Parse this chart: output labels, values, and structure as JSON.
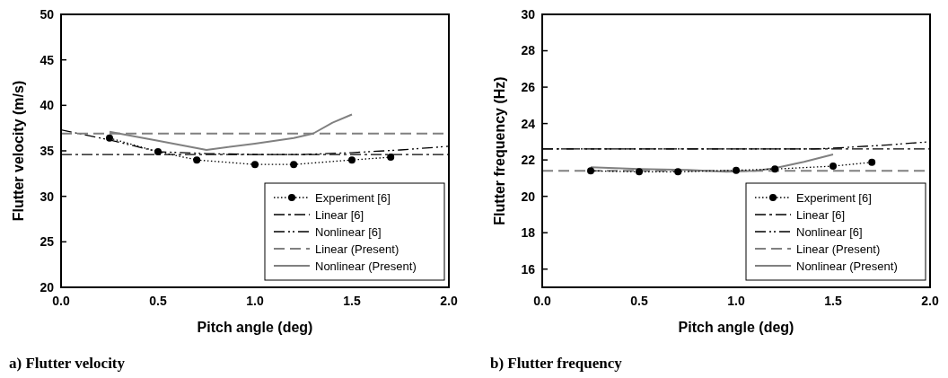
{
  "chart_data": [
    {
      "type": "line",
      "title": "a) Flutter velocity",
      "xlabel": "Pitch angle (deg)",
      "ylabel": "Flutter velocity (m/s)",
      "xlim": [
        0,
        2
      ],
      "xticks": [
        {
          "value": 0,
          "label": "0.0"
        },
        {
          "value": 0.5,
          "label": "0.5"
        },
        {
          "value": 1,
          "label": "1.0"
        },
        {
          "value": 1.5,
          "label": "1.5"
        },
        {
          "value": 2,
          "label": "2.0"
        }
      ],
      "ylim": [
        20,
        50
      ],
      "yticks": [
        20,
        25,
        30,
        35,
        40,
        45,
        50
      ],
      "grid": false,
      "legend": "bottom right",
      "series": [
        {
          "name": "Experiment [6]",
          "color": "#000000",
          "marker": "circle",
          "line_style": "dotted",
          "x": [
            0.25,
            0.5,
            0.7,
            1.0,
            1.2,
            1.5,
            1.7
          ],
          "values": [
            36.4,
            34.9,
            34.0,
            33.5,
            33.5,
            34.0,
            34.3
          ]
        },
        {
          "name": "Linear [6]",
          "color": "#000000",
          "marker": "none",
          "line_style": "dashdot",
          "x": [
            0,
            2
          ],
          "values": [
            34.6,
            34.6
          ]
        },
        {
          "name": "Nonlinear [6]",
          "color": "#000000",
          "marker": "none",
          "line_style": "dashdotdot",
          "x": [
            0,
            0.25,
            0.5,
            0.75,
            1.0,
            1.25,
            1.5,
            1.75,
            2.0
          ],
          "values": [
            37.3,
            36.2,
            34.9,
            34.7,
            34.6,
            34.6,
            34.8,
            35.1,
            35.5
          ]
        },
        {
          "name": "Linear (Present)",
          "color": "#808080",
          "marker": "none",
          "line_style": "dashed",
          "x": [
            0,
            2
          ],
          "values": [
            36.9,
            36.9
          ]
        },
        {
          "name": "Nonlinear (Present)",
          "color": "#808080",
          "marker": "none",
          "line_style": "solid",
          "x": [
            0.25,
            0.5,
            0.75,
            1.0,
            1.2,
            1.3,
            1.4,
            1.5
          ],
          "values": [
            37.1,
            36.1,
            35.1,
            35.8,
            36.4,
            36.9,
            38.1,
            39.0
          ]
        }
      ]
    },
    {
      "type": "line",
      "title": "b) Flutter frequency",
      "xlabel": "Pitch angle (deg)",
      "ylabel": "Flutter frequency (Hz)",
      "xlim": [
        0,
        2
      ],
      "xticks": [
        {
          "value": 0,
          "label": "0.0"
        },
        {
          "value": 0.5,
          "label": "0.5"
        },
        {
          "value": 1,
          "label": "1.0"
        },
        {
          "value": 1.5,
          "label": "1.5"
        },
        {
          "value": 2,
          "label": "2.0"
        }
      ],
      "ylim": [
        15,
        30
      ],
      "yticks": [
        16,
        18,
        20,
        22,
        24,
        26,
        28,
        30
      ],
      "grid": false,
      "legend": "bottom right",
      "series": [
        {
          "name": "Experiment [6]",
          "color": "#000000",
          "marker": "circle",
          "line_style": "dotted",
          "x": [
            0.25,
            0.5,
            0.7,
            1.0,
            1.2,
            1.5,
            1.7
          ],
          "values": [
            21.4,
            21.35,
            21.35,
            21.43,
            21.5,
            21.66,
            21.87
          ]
        },
        {
          "name": "Linear [6]",
          "color": "#000000",
          "marker": "none",
          "line_style": "dashdot",
          "x": [
            0,
            2
          ],
          "values": [
            22.6,
            22.6
          ]
        },
        {
          "name": "Nonlinear [6]",
          "color": "#000000",
          "marker": "none",
          "line_style": "dashdotdot",
          "x": [
            0,
            0.5,
            1.0,
            1.4,
            1.5,
            1.75,
            2.0
          ],
          "values": [
            22.6,
            22.6,
            22.6,
            22.6,
            22.65,
            22.8,
            23.0
          ]
        },
        {
          "name": "Linear (Present)",
          "color": "#808080",
          "marker": "none",
          "line_style": "dashed",
          "x": [
            0,
            2
          ],
          "values": [
            21.4,
            21.4
          ]
        },
        {
          "name": "Nonlinear (Present)",
          "color": "#808080",
          "marker": "none",
          "line_style": "solid",
          "x": [
            0.25,
            0.5,
            0.75,
            0.95,
            1.1,
            1.2,
            1.35,
            1.5
          ],
          "values": [
            21.6,
            21.5,
            21.45,
            21.35,
            21.4,
            21.55,
            21.9,
            22.3
          ]
        }
      ]
    }
  ]
}
